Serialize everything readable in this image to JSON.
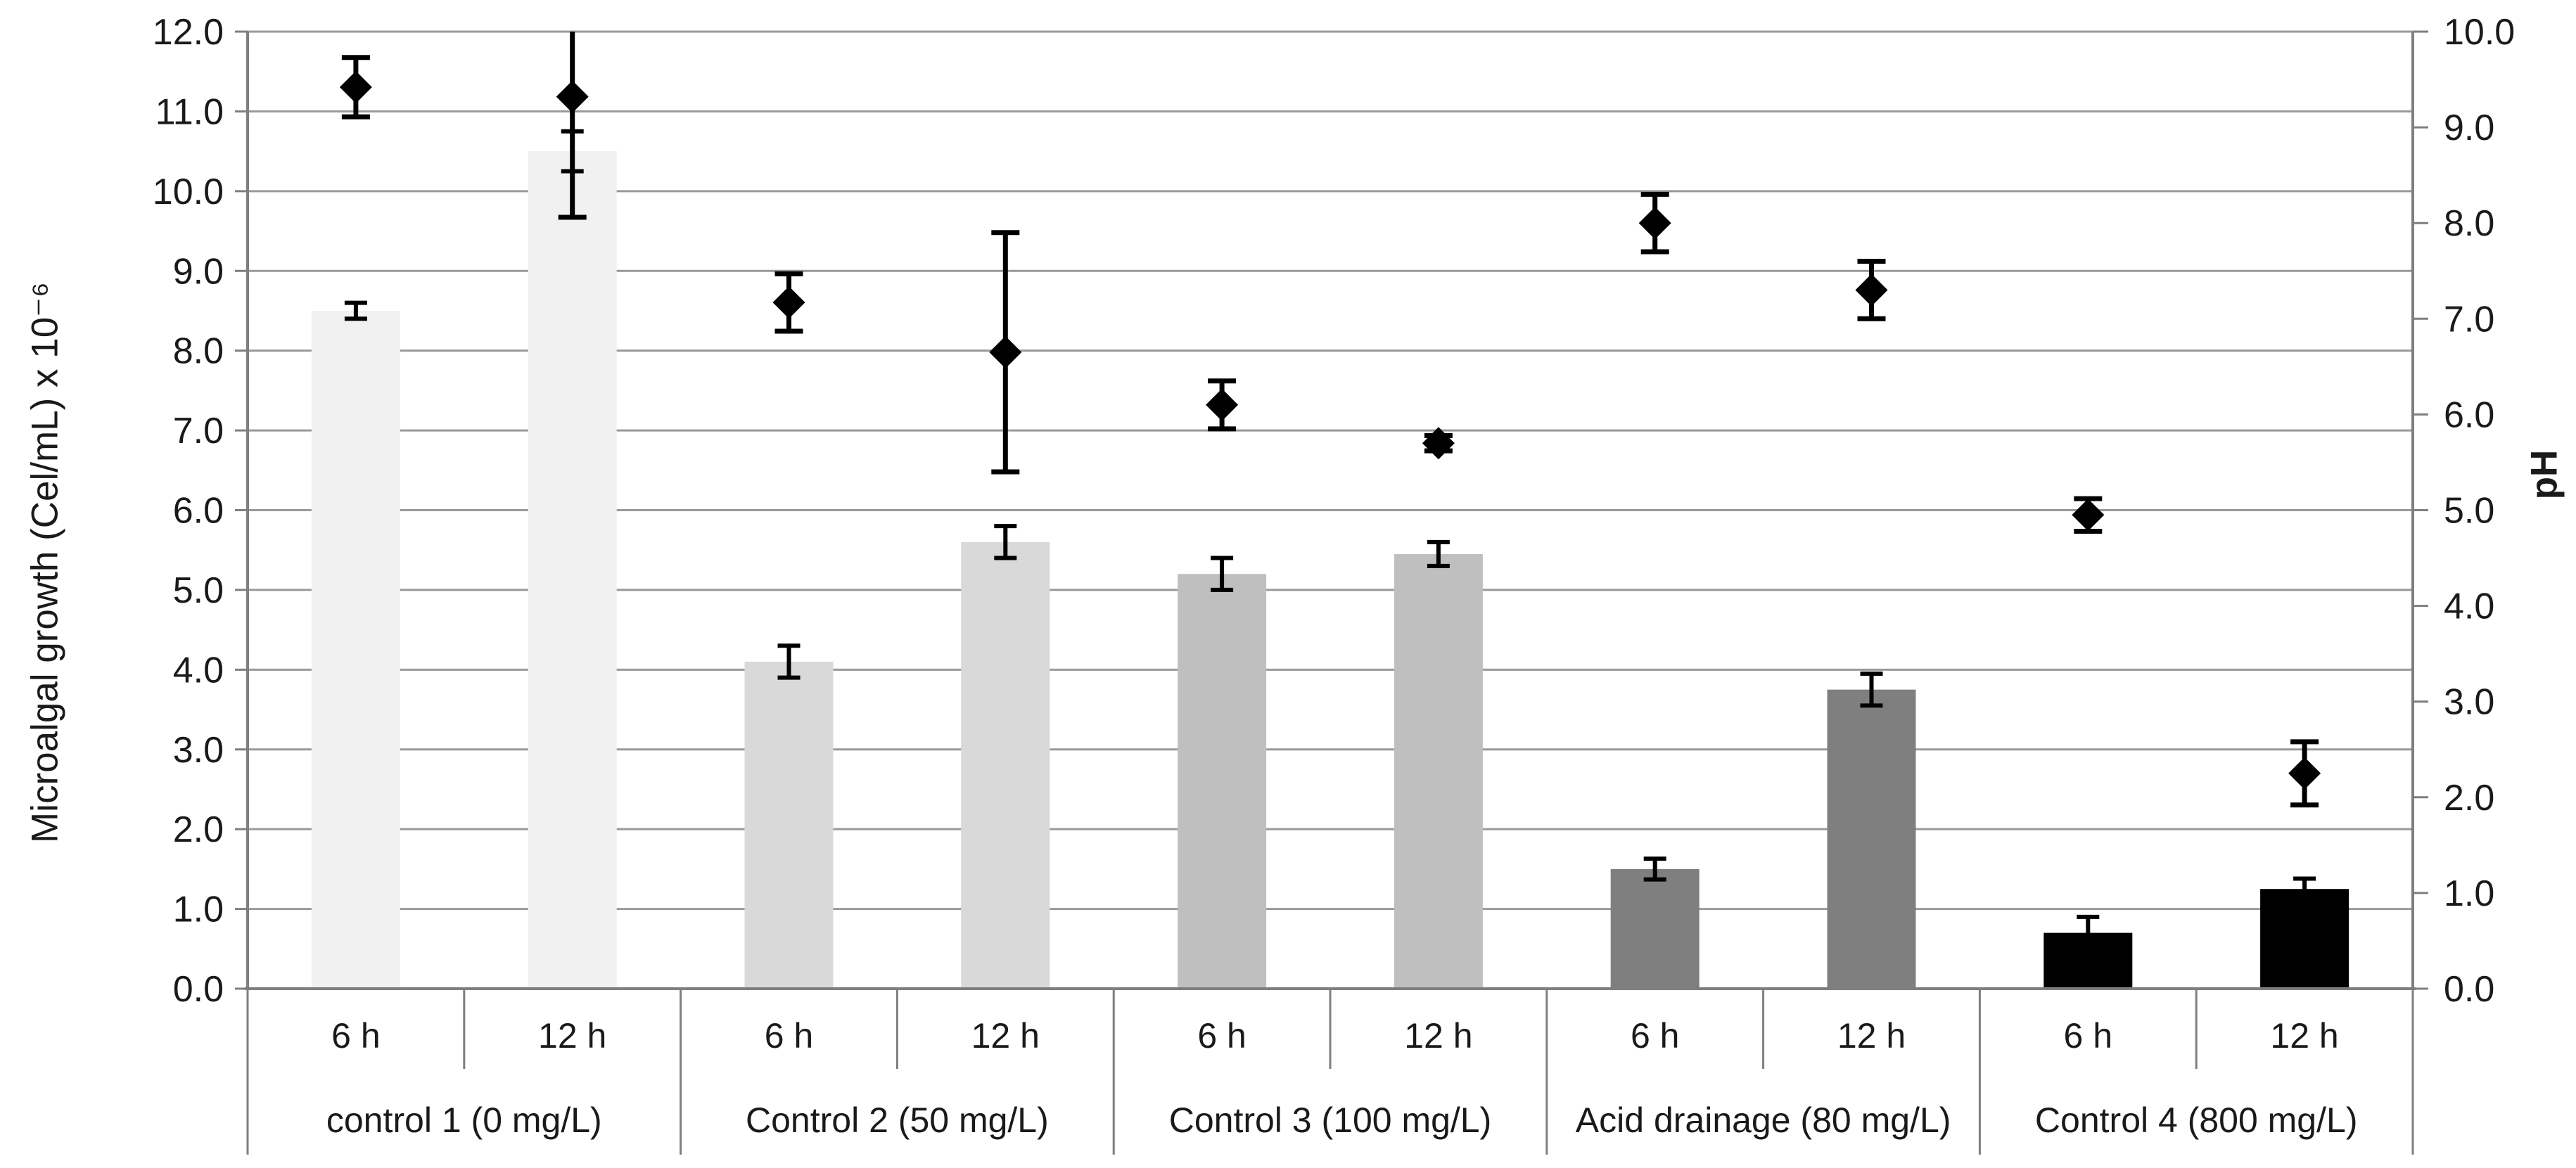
{
  "chart_data": {
    "type": "combo: bar (left axis) + scatter diamonds (right axis)",
    "title": "",
    "left_axis": {
      "label": "Microalgal growth (Cel/mL) x 10⁻⁶",
      "min": 0,
      "max": 12,
      "step": 1,
      "decimals": 1
    },
    "right_axis": {
      "label": "pH",
      "min": 0,
      "max": 10,
      "step": 1,
      "decimals": 1
    },
    "time_labels": [
      "6 h",
      "12 h"
    ],
    "groups": [
      {
        "label": "control 1 (0 mg/L)",
        "bar_color": "#f1f1f1",
        "growth_values": [
          8.5,
          10.5
        ],
        "growth_errors": [
          0.1,
          0.25
        ],
        "ph_values": [
          9.42,
          9.32
        ],
        "ph_errors": [
          0.31,
          1.26
        ]
      },
      {
        "label": "Control 2 (50 mg/L)",
        "bar_color": "#d9d9d9",
        "growth_values": [
          4.1,
          5.6
        ],
        "growth_errors": [
          0.2,
          0.2
        ],
        "ph_values": [
          7.17,
          6.65
        ],
        "ph_errors": [
          0.3,
          1.25
        ]
      },
      {
        "label": "Control 3 (100 mg/L)",
        "bar_color": "#bfbfbf",
        "growth_values": [
          5.2,
          5.45
        ],
        "growth_errors": [
          0.2,
          0.15
        ],
        "ph_values": [
          6.1,
          5.7
        ],
        "ph_errors": [
          0.25,
          0.08
        ]
      },
      {
        "label": "Acid drainage (80 mg/L)",
        "bar_color": "#7f7f7f",
        "growth_values": [
          1.5,
          3.75
        ],
        "growth_errors": [
          0.13,
          0.2
        ],
        "ph_values": [
          8.0,
          7.3
        ],
        "ph_errors": [
          0.3,
          0.3
        ]
      },
      {
        "label": "Control 4 (800 mg/L)",
        "bar_color": "#000000",
        "growth_values": [
          0.7,
          1.25
        ],
        "growth_errors": [
          0.2,
          0.13
        ],
        "ph_values": [
          4.95,
          2.25
        ],
        "ph_errors": [
          0.17,
          0.33
        ]
      }
    ],
    "marker": {
      "shape": "diamond",
      "color": "#000000"
    },
    "grid": {
      "horizontal": true,
      "vertical": false
    },
    "legend": "none",
    "colors": {
      "gridline": "#999999",
      "axis": "#7f7f7f",
      "error_bar": "#000000",
      "text": "#1a1a1a"
    }
  }
}
